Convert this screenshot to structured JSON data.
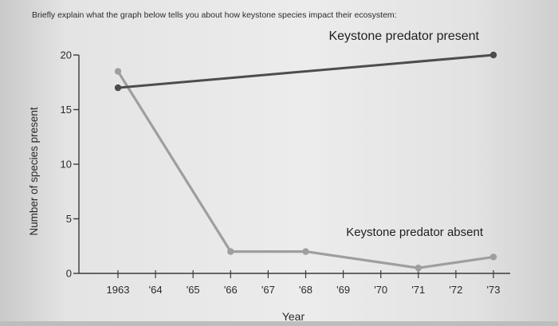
{
  "question": {
    "text": "Briefly explain what the graph below tells you about how keystone species impact their ecosystem:"
  },
  "chart_data": {
    "type": "line",
    "title": "",
    "xlabel": "Year",
    "ylabel": "Number of species present",
    "x": [
      1963,
      1964,
      1965,
      1966,
      1967,
      1968,
      1969,
      1970,
      1971,
      1972,
      1973
    ],
    "x_tick_labels": [
      "1963",
      "'64",
      "'65",
      "'66",
      "'67",
      "'68",
      "'69",
      "'70",
      "'71",
      "'72",
      "'73"
    ],
    "y_ticks": [
      0,
      5,
      10,
      15,
      20
    ],
    "ylim": [
      0,
      20
    ],
    "xlim": [
      1962.5,
      1973.5
    ],
    "grid": false,
    "series": [
      {
        "name": "Keystone predator present",
        "color": "#4d4d4d",
        "points": [
          [
            1963,
            17
          ],
          [
            1973,
            20
          ]
        ]
      },
      {
        "name": "Keystone predator absent",
        "color": "#9e9e9e",
        "points": [
          [
            1963,
            18.5
          ],
          [
            1966,
            2
          ],
          [
            1968,
            2
          ],
          [
            1971,
            0.5
          ],
          [
            1973,
            1.5
          ]
        ]
      }
    ]
  }
}
